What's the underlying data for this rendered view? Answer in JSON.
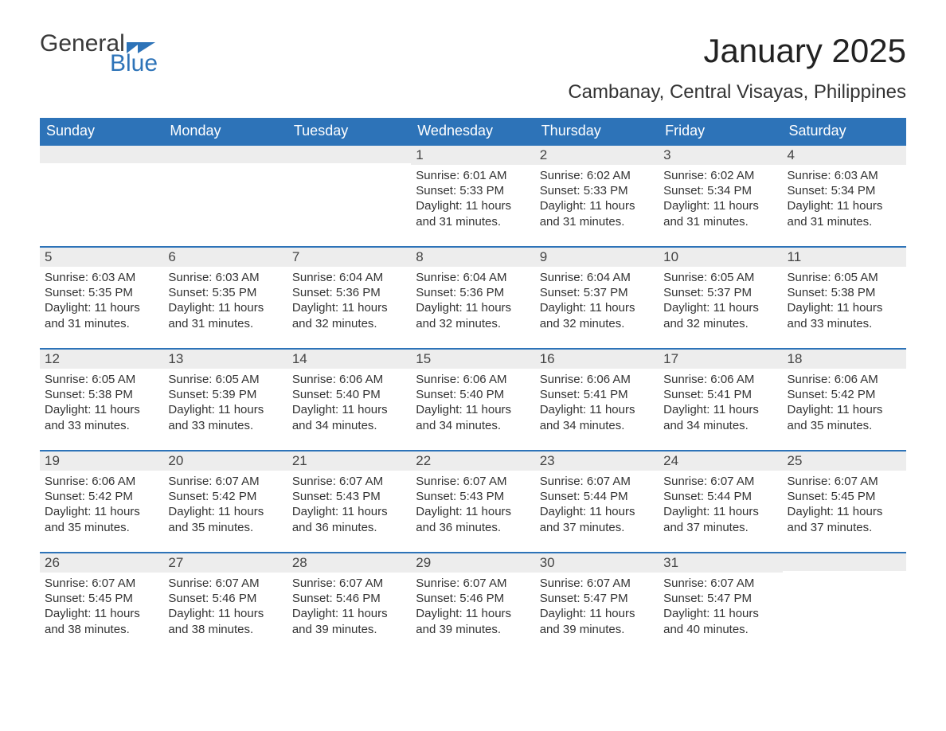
{
  "logo": {
    "word1": "General",
    "word2": "Blue"
  },
  "header": {
    "month_title": "January 2025",
    "location": "Cambanay, Central Visayas, Philippines"
  },
  "colors": {
    "header_bg": "#2d73b8",
    "header_text": "#ffffff",
    "daynum_bg": "#ededed",
    "week_border": "#2d73b8",
    "body_text": "#333333",
    "page_bg": "#ffffff"
  },
  "day_names": [
    "Sunday",
    "Monday",
    "Tuesday",
    "Wednesday",
    "Thursday",
    "Friday",
    "Saturday"
  ],
  "weeks": [
    [
      {
        "num": "",
        "sunrise": "",
        "sunset": "",
        "daylight": ""
      },
      {
        "num": "",
        "sunrise": "",
        "sunset": "",
        "daylight": ""
      },
      {
        "num": "",
        "sunrise": "",
        "sunset": "",
        "daylight": ""
      },
      {
        "num": "1",
        "sunrise": "Sunrise: 6:01 AM",
        "sunset": "Sunset: 5:33 PM",
        "daylight": "Daylight: 11 hours and 31 minutes."
      },
      {
        "num": "2",
        "sunrise": "Sunrise: 6:02 AM",
        "sunset": "Sunset: 5:33 PM",
        "daylight": "Daylight: 11 hours and 31 minutes."
      },
      {
        "num": "3",
        "sunrise": "Sunrise: 6:02 AM",
        "sunset": "Sunset: 5:34 PM",
        "daylight": "Daylight: 11 hours and 31 minutes."
      },
      {
        "num": "4",
        "sunrise": "Sunrise: 6:03 AM",
        "sunset": "Sunset: 5:34 PM",
        "daylight": "Daylight: 11 hours and 31 minutes."
      }
    ],
    [
      {
        "num": "5",
        "sunrise": "Sunrise: 6:03 AM",
        "sunset": "Sunset: 5:35 PM",
        "daylight": "Daylight: 11 hours and 31 minutes."
      },
      {
        "num": "6",
        "sunrise": "Sunrise: 6:03 AM",
        "sunset": "Sunset: 5:35 PM",
        "daylight": "Daylight: 11 hours and 31 minutes."
      },
      {
        "num": "7",
        "sunrise": "Sunrise: 6:04 AM",
        "sunset": "Sunset: 5:36 PM",
        "daylight": "Daylight: 11 hours and 32 minutes."
      },
      {
        "num": "8",
        "sunrise": "Sunrise: 6:04 AM",
        "sunset": "Sunset: 5:36 PM",
        "daylight": "Daylight: 11 hours and 32 minutes."
      },
      {
        "num": "9",
        "sunrise": "Sunrise: 6:04 AM",
        "sunset": "Sunset: 5:37 PM",
        "daylight": "Daylight: 11 hours and 32 minutes."
      },
      {
        "num": "10",
        "sunrise": "Sunrise: 6:05 AM",
        "sunset": "Sunset: 5:37 PM",
        "daylight": "Daylight: 11 hours and 32 minutes."
      },
      {
        "num": "11",
        "sunrise": "Sunrise: 6:05 AM",
        "sunset": "Sunset: 5:38 PM",
        "daylight": "Daylight: 11 hours and 33 minutes."
      }
    ],
    [
      {
        "num": "12",
        "sunrise": "Sunrise: 6:05 AM",
        "sunset": "Sunset: 5:38 PM",
        "daylight": "Daylight: 11 hours and 33 minutes."
      },
      {
        "num": "13",
        "sunrise": "Sunrise: 6:05 AM",
        "sunset": "Sunset: 5:39 PM",
        "daylight": "Daylight: 11 hours and 33 minutes."
      },
      {
        "num": "14",
        "sunrise": "Sunrise: 6:06 AM",
        "sunset": "Sunset: 5:40 PM",
        "daylight": "Daylight: 11 hours and 34 minutes."
      },
      {
        "num": "15",
        "sunrise": "Sunrise: 6:06 AM",
        "sunset": "Sunset: 5:40 PM",
        "daylight": "Daylight: 11 hours and 34 minutes."
      },
      {
        "num": "16",
        "sunrise": "Sunrise: 6:06 AM",
        "sunset": "Sunset: 5:41 PM",
        "daylight": "Daylight: 11 hours and 34 minutes."
      },
      {
        "num": "17",
        "sunrise": "Sunrise: 6:06 AM",
        "sunset": "Sunset: 5:41 PM",
        "daylight": "Daylight: 11 hours and 34 minutes."
      },
      {
        "num": "18",
        "sunrise": "Sunrise: 6:06 AM",
        "sunset": "Sunset: 5:42 PM",
        "daylight": "Daylight: 11 hours and 35 minutes."
      }
    ],
    [
      {
        "num": "19",
        "sunrise": "Sunrise: 6:06 AM",
        "sunset": "Sunset: 5:42 PM",
        "daylight": "Daylight: 11 hours and 35 minutes."
      },
      {
        "num": "20",
        "sunrise": "Sunrise: 6:07 AM",
        "sunset": "Sunset: 5:42 PM",
        "daylight": "Daylight: 11 hours and 35 minutes."
      },
      {
        "num": "21",
        "sunrise": "Sunrise: 6:07 AM",
        "sunset": "Sunset: 5:43 PM",
        "daylight": "Daylight: 11 hours and 36 minutes."
      },
      {
        "num": "22",
        "sunrise": "Sunrise: 6:07 AM",
        "sunset": "Sunset: 5:43 PM",
        "daylight": "Daylight: 11 hours and 36 minutes."
      },
      {
        "num": "23",
        "sunrise": "Sunrise: 6:07 AM",
        "sunset": "Sunset: 5:44 PM",
        "daylight": "Daylight: 11 hours and 37 minutes."
      },
      {
        "num": "24",
        "sunrise": "Sunrise: 6:07 AM",
        "sunset": "Sunset: 5:44 PM",
        "daylight": "Daylight: 11 hours and 37 minutes."
      },
      {
        "num": "25",
        "sunrise": "Sunrise: 6:07 AM",
        "sunset": "Sunset: 5:45 PM",
        "daylight": "Daylight: 11 hours and 37 minutes."
      }
    ],
    [
      {
        "num": "26",
        "sunrise": "Sunrise: 6:07 AM",
        "sunset": "Sunset: 5:45 PM",
        "daylight": "Daylight: 11 hours and 38 minutes."
      },
      {
        "num": "27",
        "sunrise": "Sunrise: 6:07 AM",
        "sunset": "Sunset: 5:46 PM",
        "daylight": "Daylight: 11 hours and 38 minutes."
      },
      {
        "num": "28",
        "sunrise": "Sunrise: 6:07 AM",
        "sunset": "Sunset: 5:46 PM",
        "daylight": "Daylight: 11 hours and 39 minutes."
      },
      {
        "num": "29",
        "sunrise": "Sunrise: 6:07 AM",
        "sunset": "Sunset: 5:46 PM",
        "daylight": "Daylight: 11 hours and 39 minutes."
      },
      {
        "num": "30",
        "sunrise": "Sunrise: 6:07 AM",
        "sunset": "Sunset: 5:47 PM",
        "daylight": "Daylight: 11 hours and 39 minutes."
      },
      {
        "num": "31",
        "sunrise": "Sunrise: 6:07 AM",
        "sunset": "Sunset: 5:47 PM",
        "daylight": "Daylight: 11 hours and 40 minutes."
      },
      {
        "num": "",
        "sunrise": "",
        "sunset": "",
        "daylight": ""
      }
    ]
  ]
}
